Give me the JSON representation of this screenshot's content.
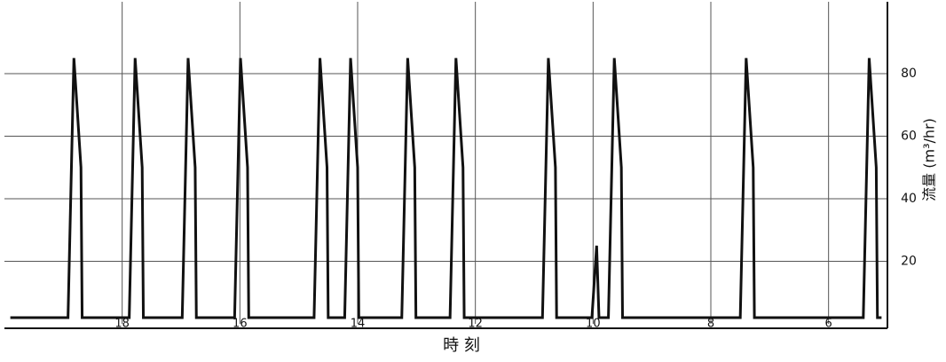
{
  "chart_data": {
    "type": "line",
    "x_label": "時 刻",
    "y_label": "流量 (m³/hr)",
    "x": [
      19.9,
      18.92,
      18.82,
      18.7,
      18.68,
      17.88,
      17.78,
      17.66,
      17.64,
      16.98,
      16.88,
      16.76,
      16.74,
      16.09,
      15.99,
      15.87,
      15.85,
      14.74,
      14.64,
      14.52,
      14.5,
      14.22,
      14.12,
      14.0,
      13.98,
      13.25,
      13.15,
      13.03,
      13.01,
      12.43,
      12.33,
      12.21,
      12.19,
      10.86,
      10.76,
      10.64,
      10.62,
      10.02,
      9.94,
      9.9,
      9.74,
      9.64,
      9.52,
      9.5,
      7.5,
      7.4,
      7.28,
      7.26,
      5.41,
      5.31,
      5.19,
      5.17,
      5.1
    ],
    "series": [
      {
        "color": "#111111",
        "values": [
          2,
          2,
          85,
          50,
          2,
          2,
          85,
          50,
          2,
          2,
          85,
          50,
          2,
          2,
          85,
          50,
          2,
          2,
          85,
          50,
          2,
          2,
          85,
          50,
          2,
          2,
          85,
          50,
          2,
          2,
          85,
          50,
          2,
          2,
          85,
          50,
          2,
          2,
          25,
          2,
          2,
          85,
          50,
          2,
          2,
          85,
          50,
          2,
          2,
          85,
          50,
          2,
          2
        ]
      }
    ],
    "xlim": [
      20,
      5
    ],
    "xticks": [
      18,
      16,
      14,
      12,
      10,
      8,
      6
    ],
    "ylim": [
      0,
      103
    ],
    "yticks": [
      20,
      40,
      60,
      80
    ],
    "grid": true
  }
}
